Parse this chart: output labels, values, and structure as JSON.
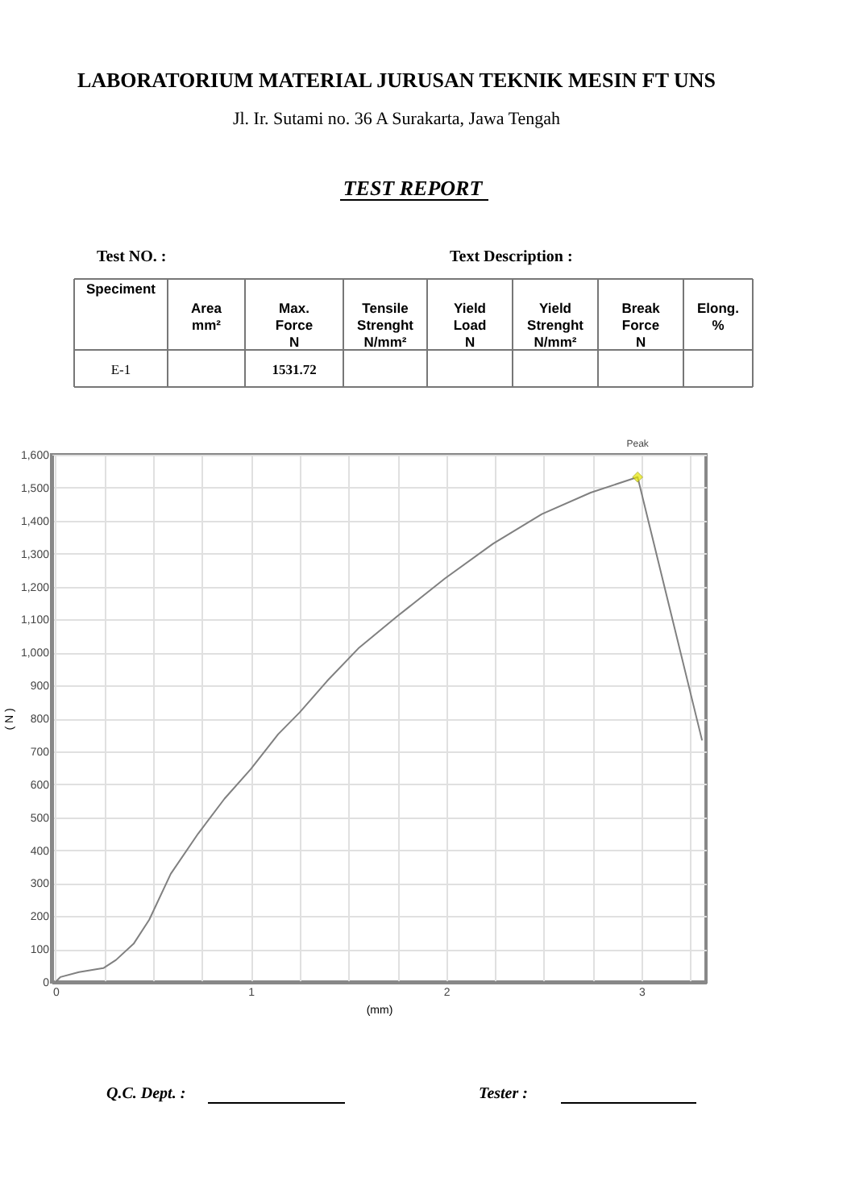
{
  "chart_data": {
    "type": "line",
    "title": "LABORATORIUM MATERIAL JURUSAN TEKNIK MESIN FT UNS",
    "subtitle": "Jl. Ir. Sutami no. 36 A Surakarta, Jawa Tengah",
    "xlabel": "(mm)",
    "ylabel": "( N )",
    "annotations": [
      "TEST REPORT",
      "Test NO. :",
      "Text Description :",
      "Speciment",
      "Area\n\nmm²",
      "Max.\nForce\nN",
      "Tensile\nStrenght\nN/mm²",
      "Yield\nLoad\nN",
      "Yield\nStrenght\nN/mm²",
      "Break\nForce\nN",
      "Elong.\n\n%",
      "E-1",
      "1531.72",
      "Q.C. Dept. :",
      "Tester :",
      {
        "text": "Peak",
        "x": 2.98,
        "y": 1532
      }
    ],
    "series": [
      {
        "color": "#808080",
        "marker": "none",
        "x": [
          0,
          0.025,
          0.12,
          0.245,
          0.31,
          0.4,
          0.48,
          0.59,
          0.73,
          0.865,
          1.0,
          1.14,
          1.25,
          1.39,
          1.55,
          1.75,
          1.995,
          2.24,
          2.49,
          2.74,
          2.98,
          3.31
        ],
        "values": [
          0,
          15,
          30,
          42,
          67,
          116,
          189,
          328,
          450,
          556,
          646,
          752,
          818,
          913,
          1012,
          1110,
          1225,
          1330,
          1420,
          1485,
          1532,
          733
        ]
      },
      {
        "type": "scatter",
        "color": "#e6e600",
        "marker": "diamond",
        "x": [
          2.98
        ],
        "values": [
          1532
        ]
      }
    ],
    "xlim": [
      -0.02,
      3.33
    ],
    "ylim": [
      0,
      1600
    ],
    "xticks": [
      0,
      {
        "value": 0.25,
        "label": null
      },
      {
        "value": 0.5,
        "label": null
      },
      {
        "value": 0.75,
        "label": null
      },
      1,
      {
        "value": 1.25,
        "label": null
      },
      {
        "value": 1.5,
        "label": null
      },
      {
        "value": 1.75,
        "label": null
      },
      2,
      {
        "value": 2.25,
        "label": null
      },
      {
        "value": 2.5,
        "label": null
      },
      {
        "value": 2.75,
        "label": null
      },
      3,
      {
        "value": 3.25,
        "label": null
      }
    ],
    "yticks": [
      0,
      100,
      200,
      300,
      400,
      500,
      600,
      700,
      800,
      900,
      {
        "value": 1000,
        "label": "1,000"
      },
      {
        "value": 1100,
        "label": "1,100"
      },
      {
        "value": 1200,
        "label": "1,200"
      },
      {
        "value": 1300,
        "label": "1,300"
      },
      {
        "value": 1400,
        "label": "1,400"
      },
      {
        "value": 1500,
        "label": "1,500"
      },
      {
        "value": 1600,
        "label": "1,600"
      }
    ],
    "grid": true
  }
}
